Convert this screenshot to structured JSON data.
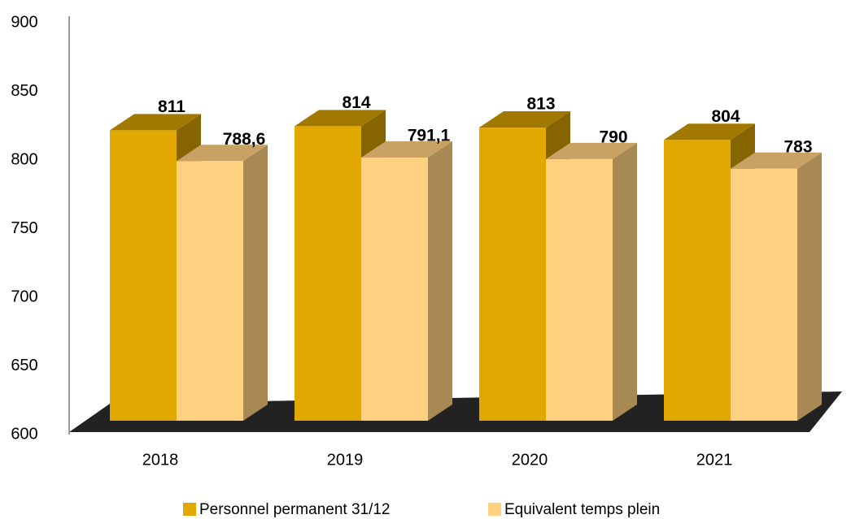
{
  "chart_data": {
    "type": "bar3d",
    "categories": [
      "2018",
      "2019",
      "2020",
      "2021"
    ],
    "series": [
      {
        "name": "Personnel permanent 31/12",
        "color": "#e0a800",
        "values": [
          811,
          814,
          813,
          804
        ]
      },
      {
        "name": "Equivalent temps plein",
        "color": "#ffd080",
        "values": [
          788.6,
          791.1,
          790,
          783
        ],
        "value_labels": [
          "788,6",
          "791,1",
          "790",
          "783"
        ]
      }
    ],
    "ylim": [
      600,
      900
    ],
    "yticks": [
      600,
      650,
      700,
      750,
      800,
      850,
      900
    ],
    "grid": false,
    "legend": "bottom"
  }
}
